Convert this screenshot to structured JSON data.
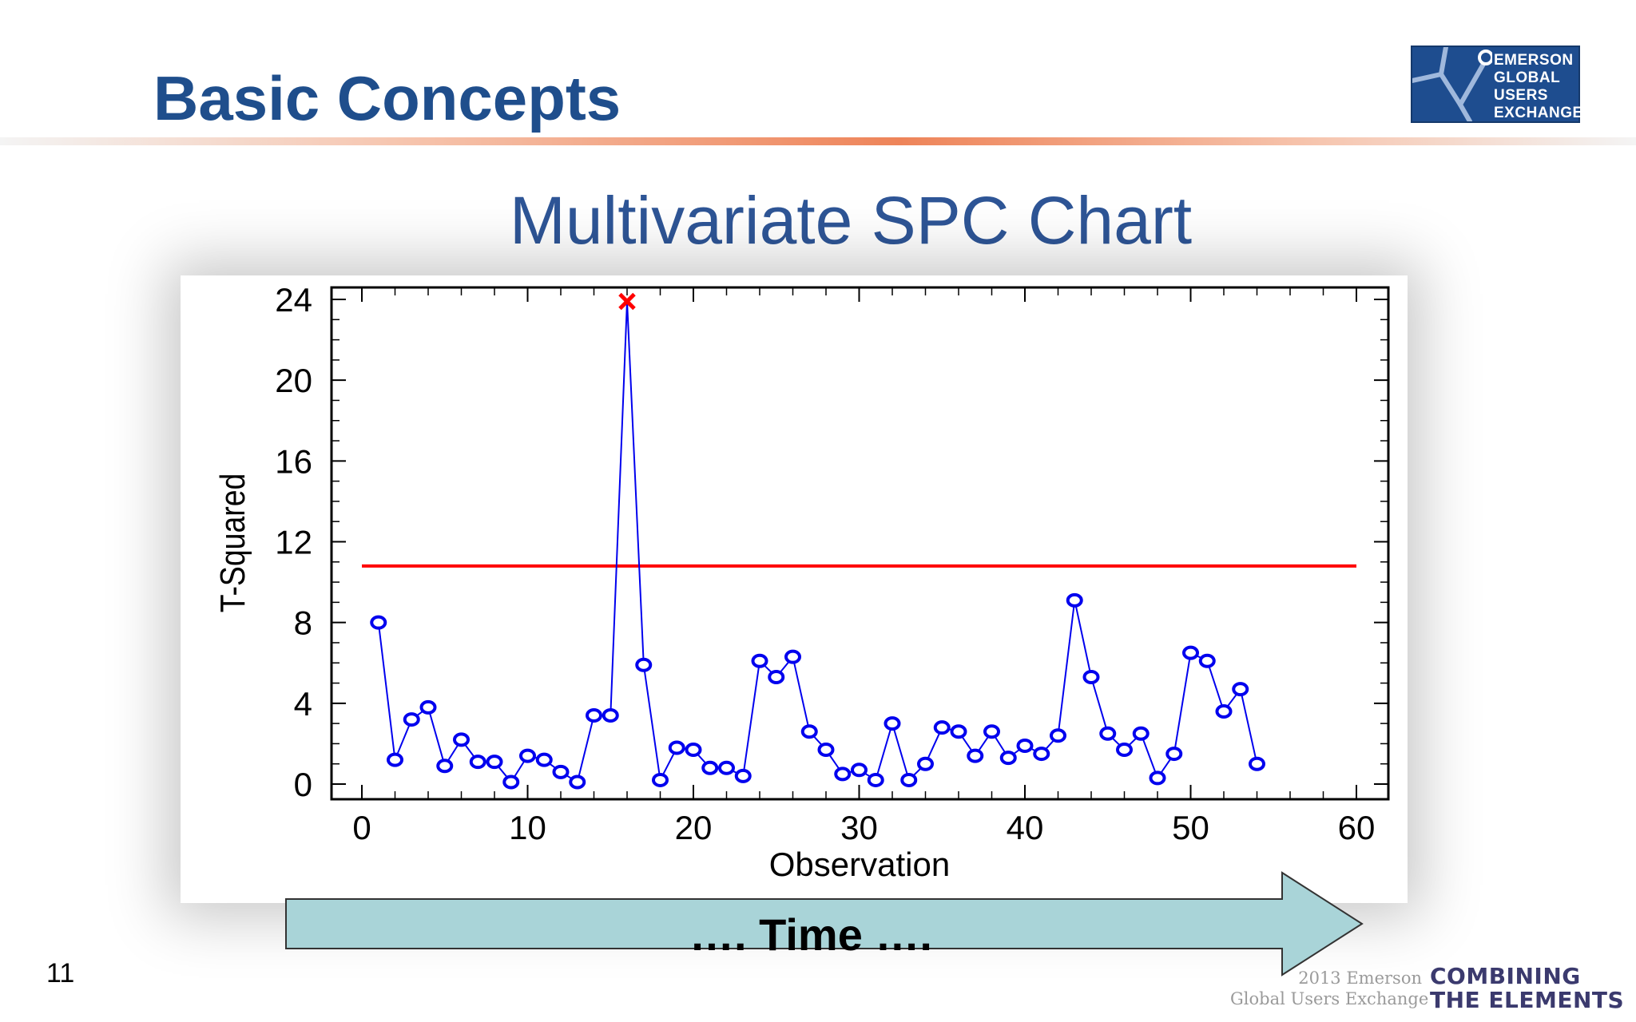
{
  "slide": {
    "title": "Basic Concepts",
    "page_number": "11"
  },
  "logo": {
    "lines": [
      "EMERSON",
      "GLOBAL",
      "USERS",
      "EXCHANGE"
    ],
    "background_color": "#1e4d8f"
  },
  "chart_heading": "Multivariate SPC Chart",
  "time_arrow": {
    "label": "…. Time ….",
    "fill_color": "#a9d4d8"
  },
  "footer": {
    "small_lines": [
      "2013 Emerson",
      "Global Users Exchange"
    ],
    "brand_lines": [
      "COMBINING",
      "THE ELEMENTS"
    ]
  },
  "chart_data": {
    "type": "line",
    "title": "",
    "xlabel": "Observation",
    "ylabel": "T-Squared",
    "xlim": [
      0,
      60
    ],
    "ylim": [
      0,
      24
    ],
    "x_ticks": [
      0,
      10,
      20,
      30,
      40,
      50,
      60
    ],
    "y_ticks": [
      0,
      4,
      8,
      12,
      16,
      20,
      24
    ],
    "grid": false,
    "series": [
      {
        "color": "#0000ee",
        "marker": "circle",
        "x": [
          1,
          2,
          3,
          4,
          5,
          6,
          7,
          8,
          9,
          10,
          11,
          12,
          13,
          14,
          15,
          16,
          17,
          18,
          19,
          20,
          21,
          22,
          23,
          24,
          25,
          26,
          27,
          28,
          29,
          30,
          31,
          32,
          33,
          34,
          35,
          36,
          37,
          38,
          39,
          40,
          41,
          42,
          43,
          44,
          45,
          46,
          47,
          48,
          49,
          50,
          51,
          52,
          53,
          54
        ],
        "values": [
          8.0,
          1.2,
          3.2,
          3.8,
          0.9,
          2.2,
          1.1,
          1.1,
          0.1,
          1.4,
          1.2,
          0.6,
          0.1,
          3.4,
          3.4,
          23.9,
          5.9,
          0.2,
          1.8,
          1.7,
          0.8,
          0.8,
          0.4,
          6.1,
          5.3,
          6.3,
          2.6,
          1.7,
          0.5,
          0.7,
          0.2,
          3.0,
          0.2,
          1.0,
          2.8,
          2.6,
          1.4,
          2.6,
          1.3,
          1.9,
          1.5,
          2.4,
          9.1,
          5.3,
          2.5,
          1.7,
          2.5,
          0.3,
          1.5,
          6.5,
          6.1,
          3.6,
          4.7,
          1.0
        ]
      }
    ],
    "control_limit": {
      "value": 10.8,
      "x_range": [
        0,
        60
      ],
      "color": "#ff0000"
    },
    "out_of_control": [
      {
        "x": 16,
        "y": 23.9,
        "marker": "x",
        "color": "#ff0000"
      }
    ]
  }
}
